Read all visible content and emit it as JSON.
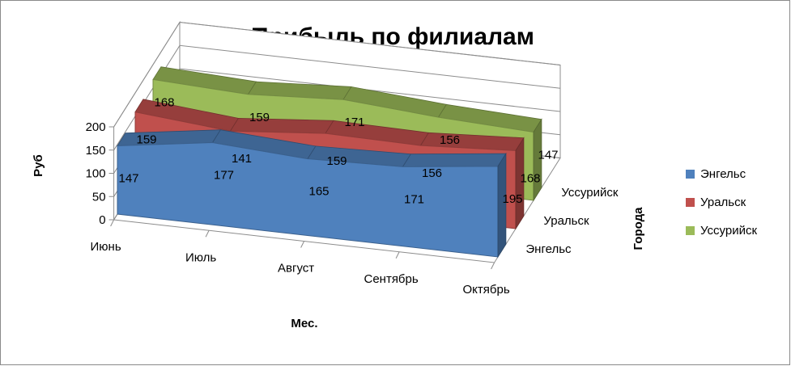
{
  "chart_data": {
    "type": "area",
    "variant": "3d-area",
    "title": "Прибыль по филиалам",
    "xlabel": "Мес.",
    "ylabel": "Руб",
    "zlabel": "Города",
    "categories": [
      "Июнь",
      "Июль",
      "Август",
      "Сентябрь",
      "Октябрь"
    ],
    "depth_labels": [
      "Энгельс",
      "Уральск",
      "Уссурийск"
    ],
    "yticks": [
      0,
      50,
      100,
      150,
      200
    ],
    "ylim": [
      0,
      200
    ],
    "legend_position": "right",
    "series": [
      {
        "name": "Энгельс",
        "color": "#4F81BD",
        "values": [
          147,
          177,
          165,
          171,
          195
        ]
      },
      {
        "name": "Уральск",
        "color": "#C0504D",
        "values": [
          159,
          141,
          159,
          156,
          168
        ]
      },
      {
        "name": "Уссурийск",
        "color": "#9BBB59",
        "values": [
          168,
          159,
          171,
          156,
          147
        ]
      }
    ]
  }
}
